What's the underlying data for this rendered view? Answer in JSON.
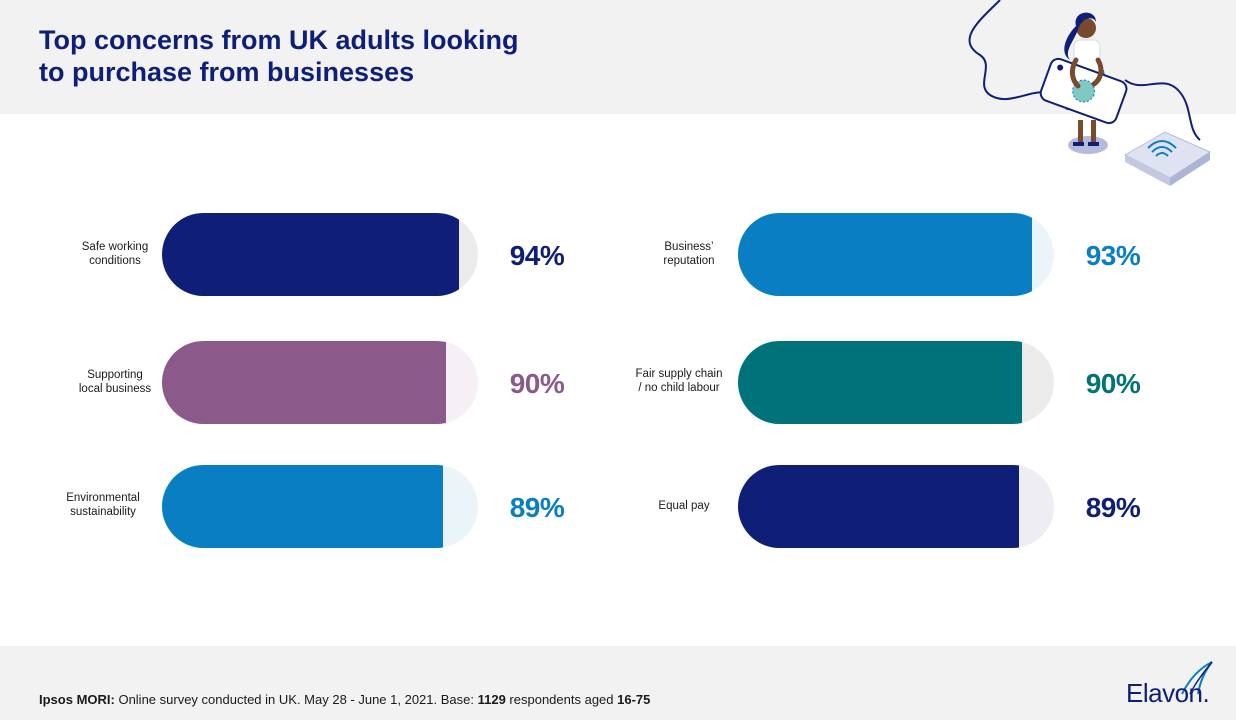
{
  "title": {
    "line1": "Top concerns from UK adults looking",
    "line2": "to purchase from businesses"
  },
  "colors": {
    "navy": "#0f1f78",
    "purple": "#8c5a8a",
    "blue": "#0a7ec2",
    "teal": "#00727a",
    "track_gray": "#ebebeb"
  },
  "chart_data": {
    "type": "bar",
    "unit": "%",
    "ylim": [
      0,
      100
    ],
    "categories": [
      [
        "Safe working",
        "conditions"
      ],
      [
        "Supporting",
        "local business"
      ],
      [
        "Environmental",
        "sustainability"
      ],
      [
        "Business’",
        "reputation"
      ],
      [
        "Fair supply chain",
        "/ no child labour"
      ],
      [
        "Equal pay"
      ]
    ],
    "values": [
      94,
      90,
      89,
      93,
      90,
      89
    ],
    "value_labels": [
      "94%",
      "90%",
      "89%",
      "93%",
      "90%",
      "89%"
    ],
    "bar_colors": [
      "#0f1f78",
      "#8c5a8a",
      "#0a7ec2",
      "#0a7ec2",
      "#00727a",
      "#0f1f78"
    ],
    "track_colors": [
      "#ebebeb",
      "#f6f0f6",
      "#eaf4f9",
      "#eaf4f9",
      "#ebebeb",
      "#ededf3"
    ]
  },
  "footnote": {
    "source": "Ipsos MORI:",
    "text1": " Online survey conducted in UK. May 28 - June 1, 2021. Base: ",
    "base": "1129",
    "text2": " respondents aged ",
    "ages": "16-75"
  },
  "logo": {
    "text": "Elavon",
    "mark": "."
  },
  "illustration": {
    "icon": "person-phone-contactless-icon"
  }
}
